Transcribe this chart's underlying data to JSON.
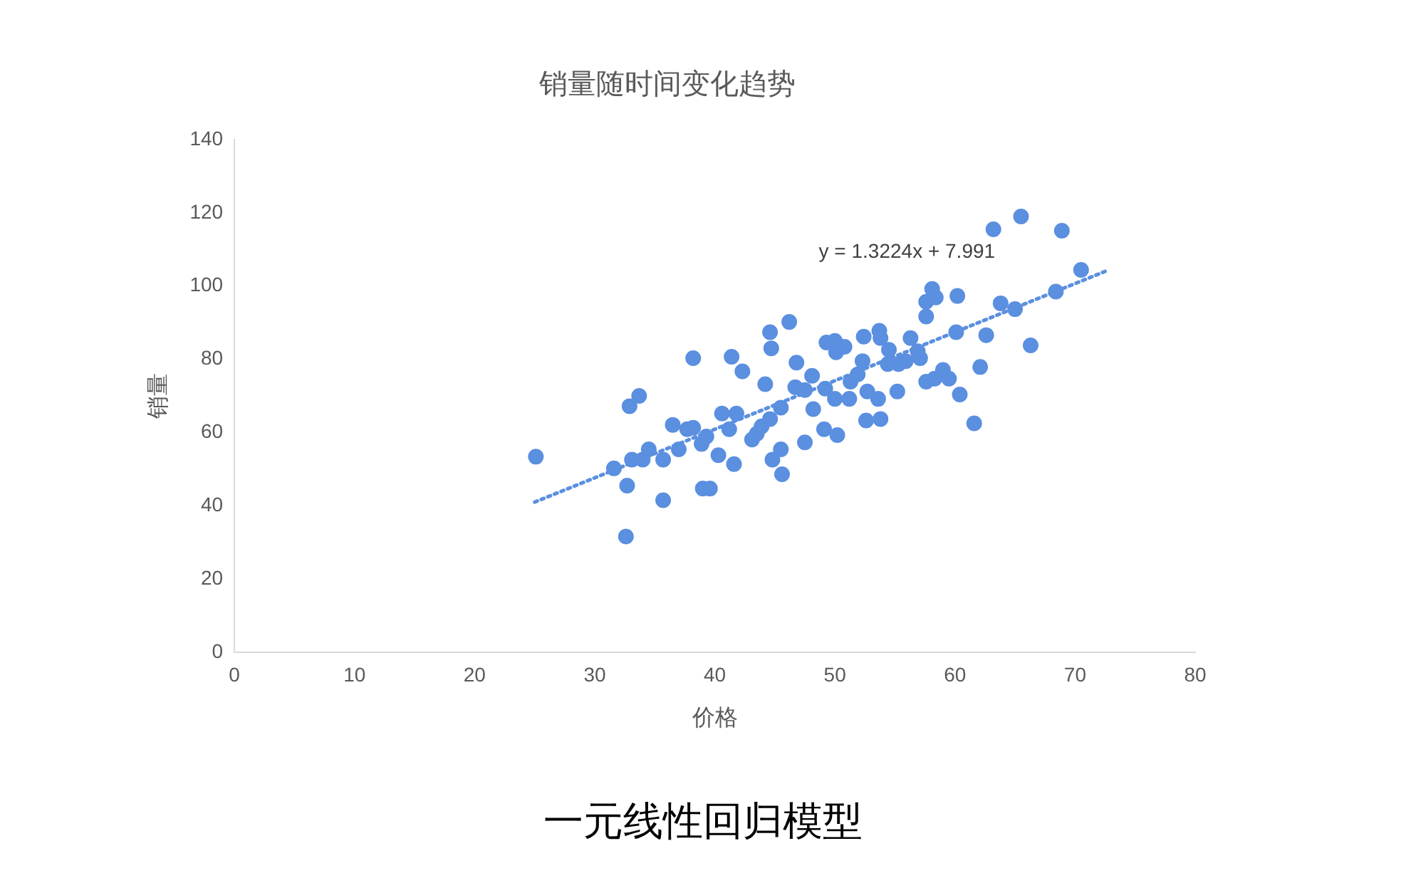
{
  "chart_data": {
    "type": "scatter",
    "title": "销量随时间变化趋势",
    "xlabel": "价格",
    "ylabel": "销量",
    "annotations": [
      "y = 1.3224x + 7.991",
      "一元线性回归模型"
    ],
    "xlim": [
      0,
      80
    ],
    "xticks": [
      0,
      10,
      20,
      30,
      40,
      50,
      60,
      70,
      80
    ],
    "ylim": [
      0,
      140
    ],
    "yticks": [
      0,
      20,
      40,
      60,
      80,
      100,
      120,
      140
    ],
    "grid": false,
    "legend": false,
    "marker": "circle",
    "series": [
      {
        "color": "#5b8fe0",
        "x": [
          25.1,
          31.6,
          32.7,
          32.6,
          33.1,
          32.9,
          33.7,
          34.0,
          34.5,
          35.7,
          35.7,
          36.5,
          37.0,
          37.7,
          38.2,
          38.2,
          38.9,
          39.3,
          39.0,
          39.6,
          40.3,
          40.6,
          41.2,
          41.4,
          41.6,
          41.8,
          42.3,
          43.1,
          43.5,
          43.9,
          44.2,
          44.6,
          44.7,
          44.6,
          44.8,
          45.5,
          45.5,
          45.6,
          46.2,
          46.8,
          46.7,
          47.5,
          47.5,
          48.1,
          48.2,
          49.1,
          49.2,
          49.3,
          50.0,
          50.1,
          50.8,
          50.0,
          50.2,
          51.2,
          51.3,
          51.9,
          52.3,
          52.4,
          52.6,
          52.7,
          53.6,
          53.7,
          53.8,
          53.8,
          54.4,
          54.5,
          55.2,
          55.3,
          55.9,
          56.3,
          56.9,
          57.1,
          57.6,
          57.6,
          57.6,
          58.1,
          58.3,
          58.4,
          59.0,
          59.5,
          60.1,
          60.2,
          60.4,
          61.6,
          62.1,
          62.6,
          63.2,
          63.8,
          65.0,
          65.5,
          66.3,
          68.4,
          68.9,
          70.5
        ],
        "values": [
          53.4,
          50.2,
          45.5,
          31.6,
          52.6,
          67.2,
          70.0,
          52.6,
          55.4,
          41.5,
          52.6,
          62.1,
          55.4,
          60.9,
          61.3,
          80.3,
          56.9,
          58.9,
          44.7,
          44.7,
          53.8,
          65.2,
          60.9,
          80.7,
          51.4,
          65.2,
          76.7,
          58.1,
          59.7,
          61.7,
          73.2,
          87.4,
          83.0,
          63.7,
          52.6,
          55.4,
          66.8,
          48.6,
          90.2,
          79.1,
          72.4,
          57.3,
          71.6,
          75.5,
          66.4,
          60.9,
          72.0,
          84.6,
          85.0,
          81.9,
          83.4,
          69.2,
          59.3,
          69.2,
          73.9,
          75.9,
          79.5,
          86.2,
          63.3,
          71.2,
          69.2,
          87.8,
          85.8,
          63.7,
          78.7,
          82.6,
          71.2,
          78.7,
          79.5,
          85.8,
          82.2,
          80.3,
          91.7,
          73.9,
          95.7,
          99.2,
          74.7,
          96.9,
          77.1,
          74.7,
          87.4,
          97.3,
          70.4,
          62.5,
          77.9,
          86.6,
          115.5,
          95.3,
          93.7,
          119.0,
          83.8,
          98.5,
          115.1,
          104.4
        ]
      },
      {
        "type": "line",
        "color": "#5b8fe0",
        "line_style": "dotted",
        "marker": "none",
        "x": [
          25,
          72.5
        ],
        "values": [
          41,
          104
        ]
      }
    ]
  }
}
